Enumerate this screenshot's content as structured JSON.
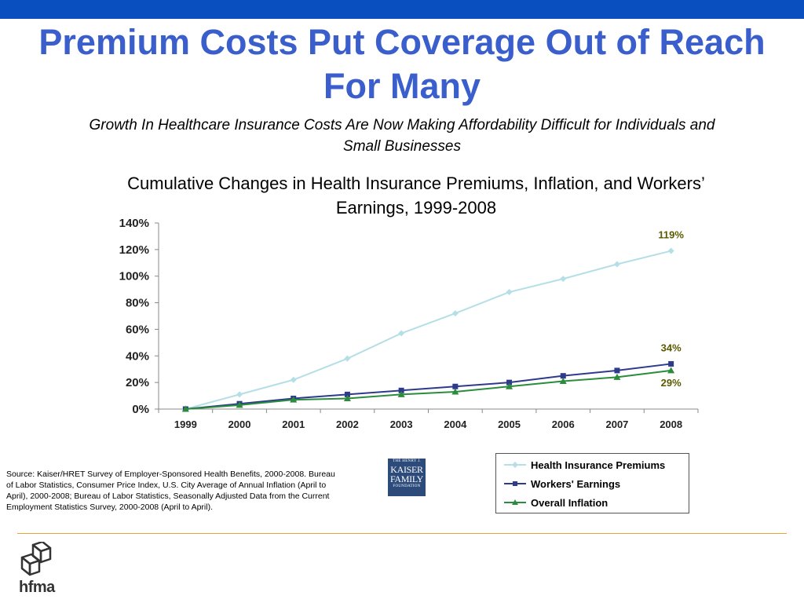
{
  "header": {
    "title": "Premium Costs Put Coverage Out of Reach For Many",
    "subtitle": "Growth In Healthcare Insurance Costs Are Now Making Affordability Difficult for Individuals and Small Businesses",
    "bar_color": "#0a4fbf",
    "title_color": "#3a5fcd"
  },
  "chart_data": {
    "type": "line",
    "title": "Cumulative Changes in Health Insurance Premiums, Inflation, and Workers’ Earnings, 1999-2008",
    "x": [
      "1999",
      "2000",
      "2001",
      "2002",
      "2003",
      "2004",
      "2005",
      "2006",
      "2007",
      "2008"
    ],
    "ylim": [
      0,
      140
    ],
    "yticks": [
      "0%",
      "20%",
      "40%",
      "60%",
      "80%",
      "100%",
      "120%",
      "140%"
    ],
    "grid": false,
    "legend_position": "bottom-right",
    "series": [
      {
        "name": "Health Insurance Premiums",
        "marker": "diamond",
        "color": "#b5dfe6",
        "values": [
          0,
          11,
          22,
          38,
          57,
          72,
          88,
          98,
          109,
          119
        ],
        "end_label": "119%"
      },
      {
        "name": "Workers' Earnings",
        "marker": "square",
        "color": "#2e3a8c",
        "values": [
          0,
          4,
          8,
          11,
          14,
          17,
          20,
          25,
          29,
          34
        ],
        "end_label": "34%"
      },
      {
        "name": "Overall Inflation",
        "marker": "triangle",
        "color": "#2a8c3c",
        "values": [
          0,
          3,
          7,
          8,
          11,
          13,
          17,
          21,
          24,
          29
        ],
        "end_label": "29%"
      }
    ],
    "annotation_color": "#5a5a00"
  },
  "source": "Source:  Kaiser/HRET Survey of Employer-Sponsored Health Benefits, 2000-2008. Bureau of Labor Statistics, Consumer Price Index, U.S. City Average of Annual Inflation (April to April), 2000-2008; Bureau of Labor Statistics, Seasonally Adjusted Data from the Current Employment Statistics Survey, 2000-2008 (April to April).",
  "logo": {
    "line1": "THE HENRY J.",
    "line2": "KAISER",
    "line3": "FAMILY",
    "line4": "FOUNDATION"
  },
  "footer": {
    "brand": "hfma",
    "rule_color": "#e8a33c"
  }
}
